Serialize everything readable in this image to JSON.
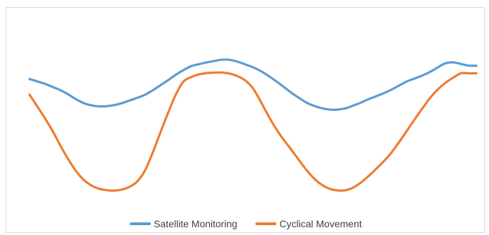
{
  "chart_data": {
    "type": "line",
    "title": "",
    "xlabel": "",
    "ylabel": "",
    "x": [
      0,
      1,
      2,
      3,
      4,
      5,
      6,
      7,
      8,
      9,
      10,
      11,
      12,
      13,
      14,
      15,
      16,
      17,
      18,
      19,
      20,
      21,
      22,
      23,
      24,
      25,
      26,
      27,
      28,
      29,
      30,
      31,
      32,
      33,
      34,
      35,
      36,
      37,
      38,
      39,
      40,
      41,
      42,
      43,
      44,
      45,
      46,
      47,
      48,
      49,
      50,
      51,
      52,
      53,
      54,
      55,
      56,
      57,
      58
    ],
    "ylim": [
      0,
      100
    ],
    "grid": false,
    "legend_position": "bottom",
    "series": [
      {
        "name": "Satellite Monitoring",
        "color": "#5B9BD5",
        "values": [
          72.3,
          71.0,
          69.6,
          67.9,
          66.1,
          63.8,
          61.1,
          58.9,
          57.6,
          57.0,
          57.1,
          57.7,
          58.8,
          60.3,
          61.8,
          63.5,
          66.0,
          68.8,
          71.7,
          74.7,
          77.3,
          79.5,
          80.6,
          81.6,
          82.4,
          83.1,
          83.0,
          82.0,
          80.5,
          78.9,
          76.8,
          74.1,
          71.1,
          67.9,
          64.6,
          61.7,
          59.0,
          57.2,
          55.9,
          55.2,
          55.2,
          55.9,
          57.4,
          59.1,
          61.0,
          62.7,
          64.4,
          66.4,
          68.7,
          71.0,
          72.6,
          74.3,
          76.3,
          78.8,
          81.1,
          81.6,
          80.7,
          79.8,
          79.7
        ]
      },
      {
        "name": "Cyclical Movement",
        "color": "#ED7D31",
        "values": [
          63.6,
          57.1,
          50.4,
          43.3,
          35.2,
          27.7,
          21.1,
          16.1,
          12.9,
          11.0,
          10.2,
          9.9,
          10.5,
          12.1,
          15.1,
          21.2,
          31.2,
          42.5,
          53.5,
          63.7,
          70.9,
          73.4,
          74.9,
          75.6,
          75.9,
          75.9,
          75.3,
          73.9,
          71.5,
          67.1,
          59.8,
          51.8,
          44.5,
          38.3,
          32.7,
          26.8,
          21.2,
          16.4,
          13.0,
          10.9,
          10.0,
          10.1,
          11.6,
          14.4,
          18.0,
          22.1,
          26.4,
          31.3,
          37.2,
          43.5,
          49.8,
          55.9,
          61.8,
          66.5,
          70.2,
          73.1,
          75.5,
          75.5,
          75.5
        ]
      }
    ]
  }
}
